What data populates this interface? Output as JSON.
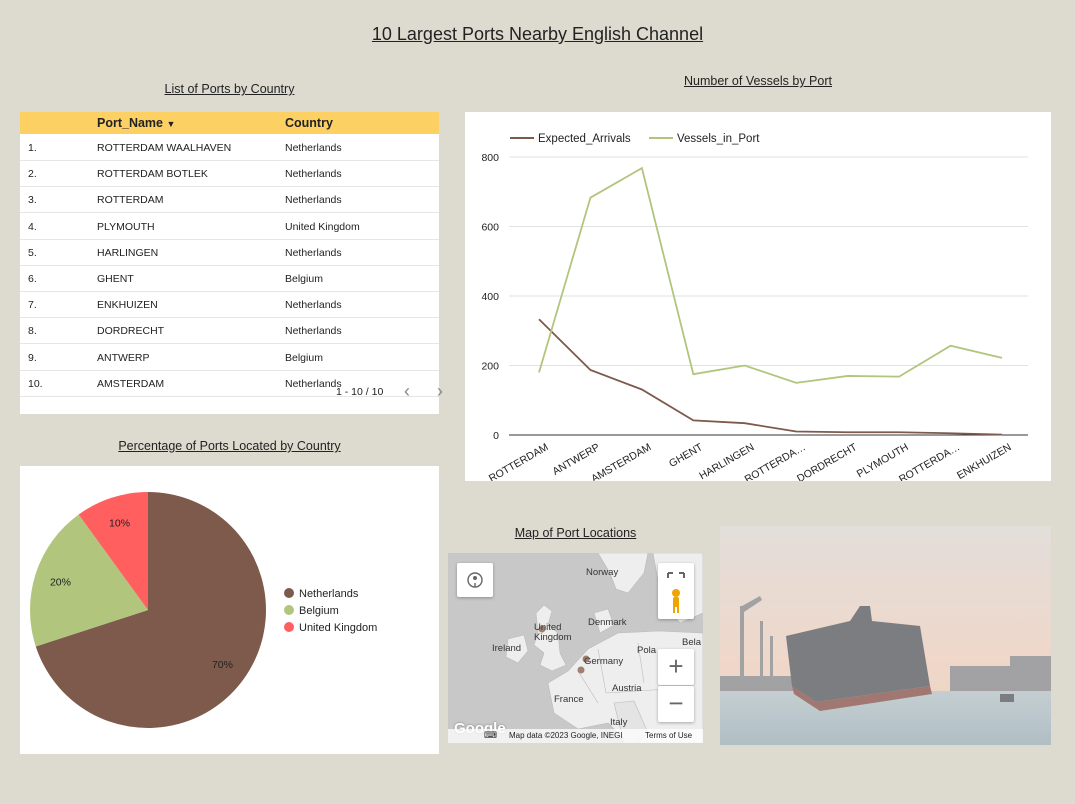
{
  "title": "10 Largest Ports Nearby English Channel",
  "table": {
    "subtitle": "List of Ports by Country",
    "columns": [
      "Port_Name",
      "Country"
    ],
    "sort_icon": "sort-down-icon",
    "rows": [
      {
        "rank": "1.",
        "port": "ROTTERDAM WAALHAVEN",
        "country": "Netherlands"
      },
      {
        "rank": "2.",
        "port": "ROTTERDAM BOTLEK",
        "country": "Netherlands"
      },
      {
        "rank": "3.",
        "port": "ROTTERDAM",
        "country": "Netherlands"
      },
      {
        "rank": "4.",
        "port": "PLYMOUTH",
        "country": "United Kingdom"
      },
      {
        "rank": "5.",
        "port": "HARLINGEN",
        "country": "Netherlands"
      },
      {
        "rank": "6.",
        "port": "GHENT",
        "country": "Belgium"
      },
      {
        "rank": "7.",
        "port": "ENKHUIZEN",
        "country": "Netherlands"
      },
      {
        "rank": "8.",
        "port": "DORDRECHT",
        "country": "Netherlands"
      },
      {
        "rank": "9.",
        "port": "ANTWERP",
        "country": "Belgium"
      },
      {
        "rank": "10.",
        "port": "AMSTERDAM",
        "country": "Netherlands"
      }
    ],
    "pager": "1 - 10 / 10",
    "header_color": "#fdd064"
  },
  "pie": {
    "subtitle": "Percentage of Ports Located by Country"
  },
  "line": {
    "subtitle": "Number of Vessels by Port"
  },
  "map": {
    "subtitle": "Map of Port Locations",
    "labels": [
      "Norway",
      "United Kingdom",
      "Denmark",
      "Ireland",
      "Germany",
      "Pola",
      "Bela",
      "France",
      "Austria",
      "Italy"
    ],
    "attribution": "Map data ©2023 Google, INEGI",
    "terms": "Terms of Use",
    "logo": "Google"
  },
  "chart_data": [
    {
      "type": "line",
      "x": [
        "ROTTERDAM",
        "ANTWERP",
        "AMSTERDAM",
        "GHENT",
        "HARLINGEN",
        "ROTTERDA…",
        "DORDRECHT",
        "PLYMOUTH",
        "ROTTERDA…",
        "ENKHUIZEN"
      ],
      "series": [
        {
          "name": "Expected_Arrivals",
          "values": [
            333,
            187,
            131,
            42,
            34,
            10,
            8,
            8,
            5,
            1
          ],
          "color": "#7d5a4b"
        },
        {
          "name": "Vessels_in_Port",
          "values": [
            180,
            683,
            768,
            175,
            200,
            150,
            170,
            168,
            257,
            222
          ],
          "color": "#b1c57d"
        }
      ],
      "yticks": [
        0,
        200,
        400,
        600,
        800
      ],
      "ylim": [
        0,
        800
      ],
      "legend": "top-left",
      "grid": true
    },
    {
      "type": "pie",
      "labels": [
        "Netherlands",
        "Belgium",
        "United Kingdom"
      ],
      "values": [
        70,
        20,
        10
      ],
      "value_labels": [
        "70%",
        "20%",
        "10%"
      ],
      "colors": [
        "#7d5a4b",
        "#b1c57d",
        "#ff5f5f"
      ],
      "legend": "right"
    }
  ]
}
